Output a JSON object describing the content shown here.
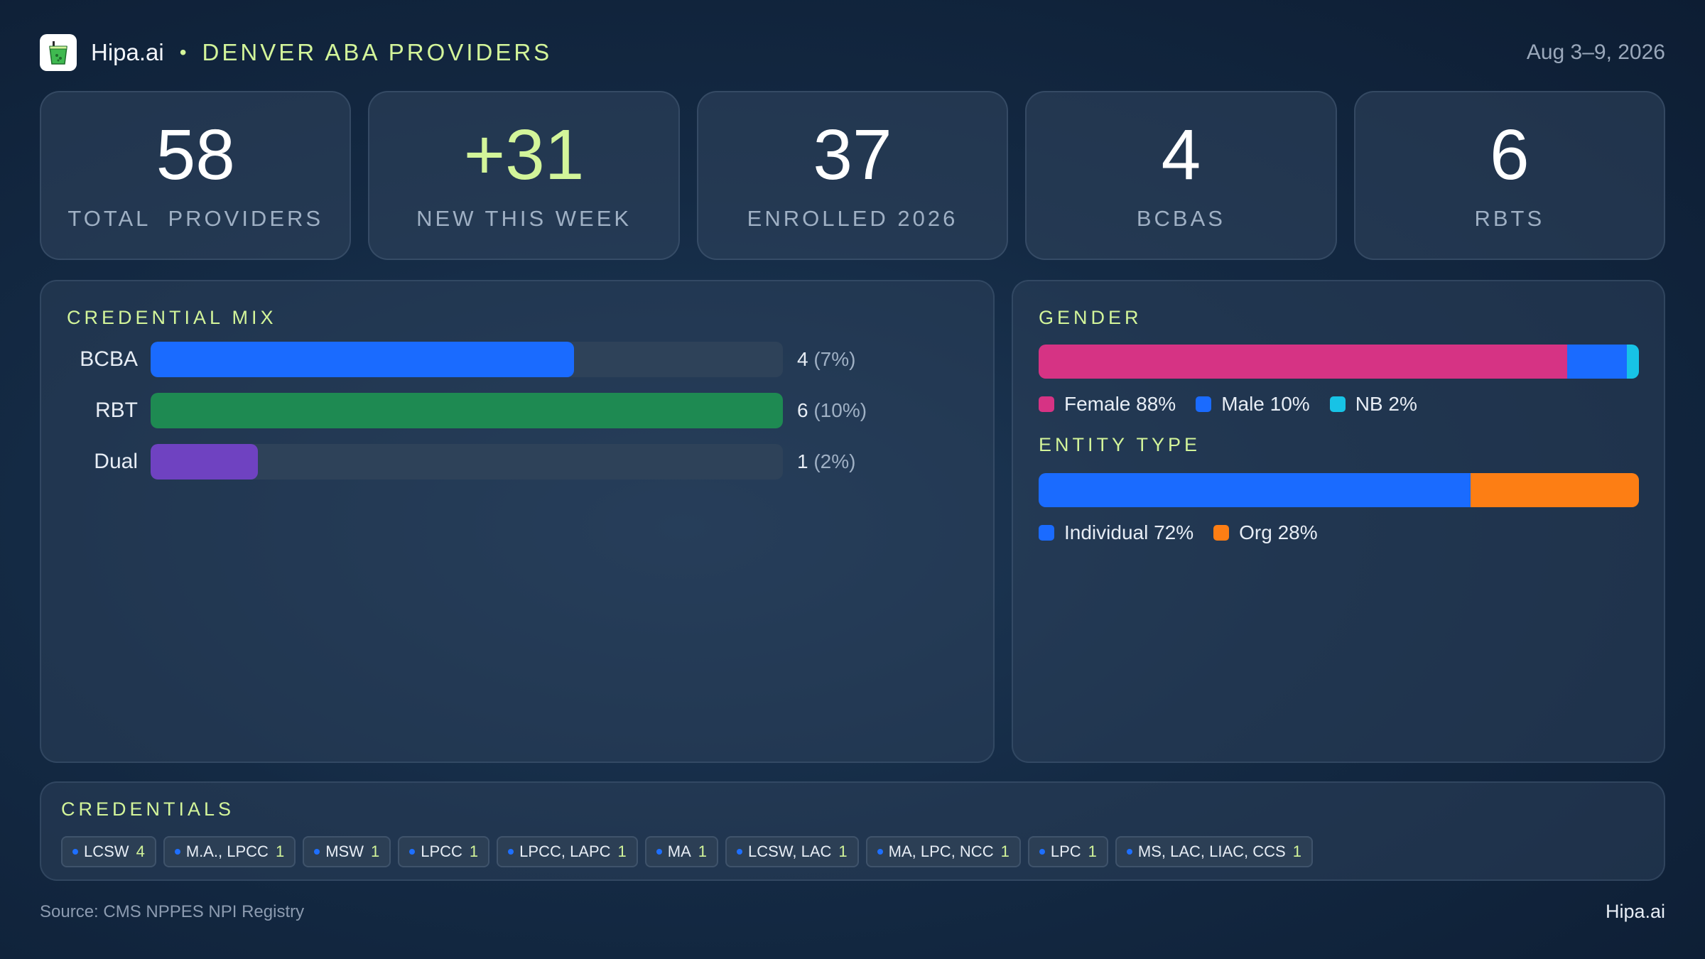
{
  "header": {
    "brand": "Hipa.ai",
    "separator": "•",
    "region": "DENVER ABA PROVIDERS",
    "date_range": "Aug 3–9, 2026",
    "logo_icon": "cup-logo-icon"
  },
  "kpis": [
    {
      "value": "58",
      "label": "TOTAL  PROVIDERS",
      "accent": false
    },
    {
      "value": "+31",
      "label": "NEW THIS WEEK",
      "accent": true
    },
    {
      "value": "37",
      "label": "ENROLLED 2026",
      "accent": false
    },
    {
      "value": "4",
      "label": "BCBAS",
      "accent": false
    },
    {
      "value": "6",
      "label": "RBTS",
      "accent": false
    }
  ],
  "credential_mix": {
    "title": "CREDENTIAL MIX",
    "rows": [
      {
        "label": "BCBA",
        "count": "4",
        "pct": "(7%)",
        "fill_fraction": 0.67,
        "color": "#1a6bff"
      },
      {
        "label": "RBT",
        "count": "6",
        "pct": "(10%)",
        "fill_fraction": 1.0,
        "color": "#1e8a52"
      },
      {
        "label": "Dual",
        "count": "1",
        "pct": "(2%)",
        "fill_fraction": 0.17,
        "color": "#6f42c1"
      }
    ]
  },
  "gender": {
    "title": "GENDER",
    "segments": [
      {
        "label": "Female 88%",
        "percent": 88,
        "color": "#d63384"
      },
      {
        "label": "Male 10%",
        "percent": 10,
        "color": "#1a6bff"
      },
      {
        "label": "NB 2%",
        "percent": 2,
        "color": "#17c3e6"
      }
    ]
  },
  "entity_type": {
    "title": "ENTITY TYPE",
    "segments": [
      {
        "label": "Individual 72%",
        "percent": 72,
        "color": "#1a6bff"
      },
      {
        "label": "Org 28%",
        "percent": 28,
        "color": "#fd7e14"
      }
    ]
  },
  "credentials": {
    "title": "CREDENTIALS",
    "chips": [
      {
        "name": "LCSW",
        "count": "4"
      },
      {
        "name": "M.A., LPCC",
        "count": "1"
      },
      {
        "name": "MSW",
        "count": "1"
      },
      {
        "name": "LPCC",
        "count": "1"
      },
      {
        "name": "LPCC, LAPC",
        "count": "1"
      },
      {
        "name": "MA",
        "count": "1"
      },
      {
        "name": "LCSW, LAC",
        "count": "1"
      },
      {
        "name": "MA, LPC, NCC",
        "count": "1"
      },
      {
        "name": "LPC",
        "count": "1"
      },
      {
        "name": "MS, LAC, LIAC, CCS",
        "count": "1"
      }
    ]
  },
  "footer": {
    "source": "Source: CMS NPPES NPI Registry",
    "brand": "Hipa.ai"
  }
}
